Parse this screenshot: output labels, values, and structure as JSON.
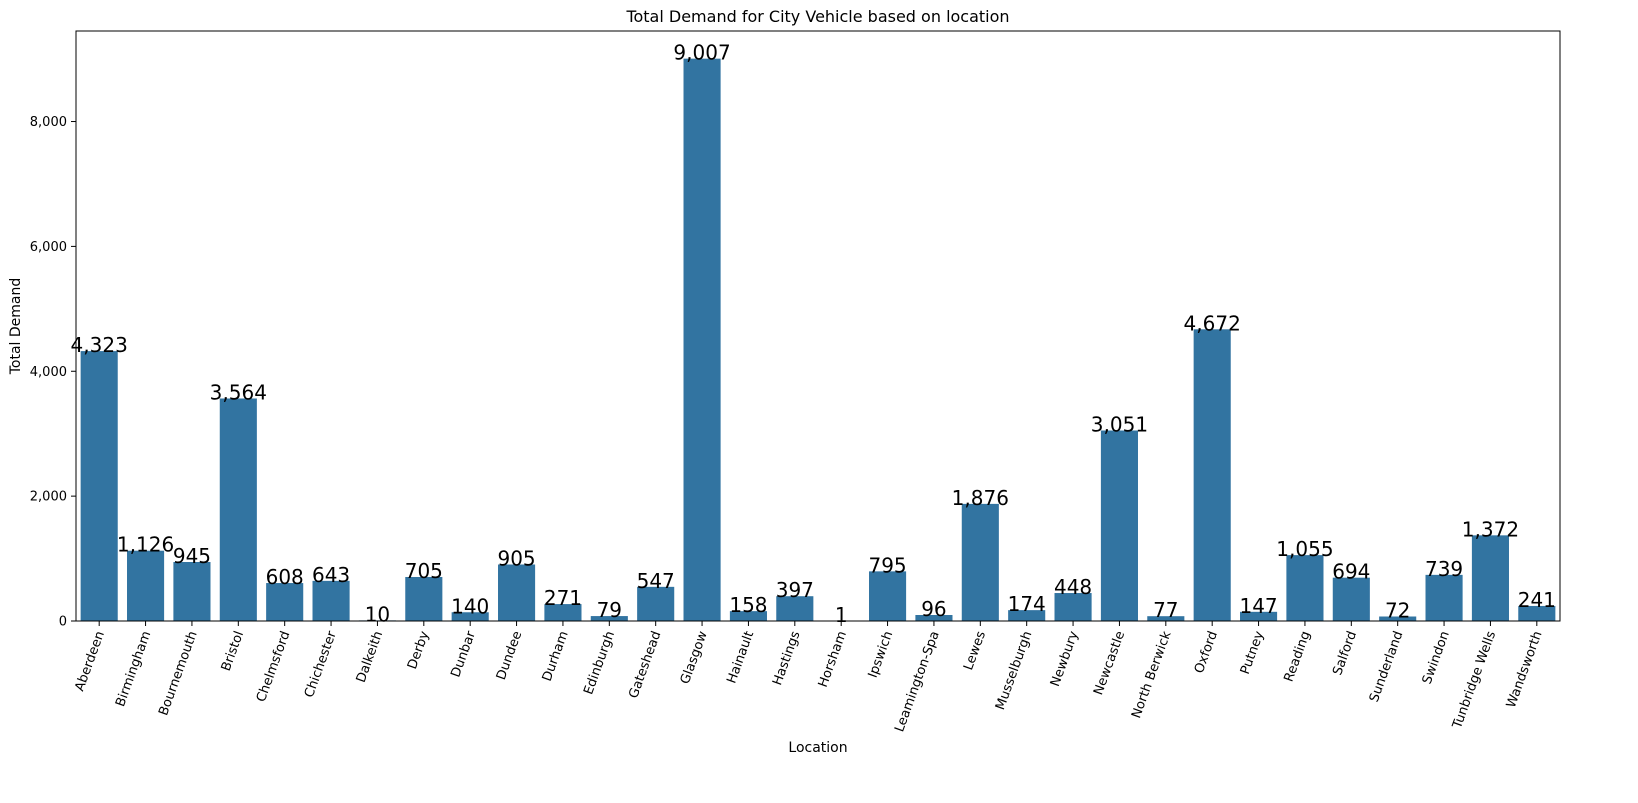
{
  "chart_data": {
    "type": "bar",
    "title": "Total Demand for City Vehicle based on location",
    "xlabel": "Location",
    "ylabel": "Total Demand",
    "ylim": [
      0,
      9450
    ],
    "yticks": [
      0,
      2000,
      4000,
      6000,
      8000
    ],
    "ytick_labels": [
      "0",
      "2,000",
      "4,000",
      "6,000",
      "8,000"
    ],
    "bar_color": "#3274a1",
    "grid": false,
    "categories": [
      "Aberdeen",
      "Birmingham",
      "Bournemouth",
      "Bristol",
      "Chelmsford",
      "Chichester",
      "Dalkeith",
      "Derby",
      "Dunbar",
      "Dundee",
      "Durham",
      "Edinburgh",
      "Gateshead",
      "Glasgow",
      "Hainault",
      "Hastings",
      "Horsham",
      "Ipswich",
      "Leamington-Spa",
      "Lewes",
      "Musselburgh",
      "Newbury",
      "Newcastle",
      "North Berwick",
      "Oxford",
      "Putney",
      "Reading",
      "Salford",
      "Sunderland",
      "Swindon",
      "Tunbridge Wells",
      "Wandsworth"
    ],
    "values": [
      4323,
      1126,
      945,
      3564,
      608,
      643,
      10,
      705,
      140,
      905,
      271,
      79,
      547,
      9007,
      158,
      397,
      1,
      795,
      96,
      1876,
      174,
      448,
      3051,
      77,
      4672,
      147,
      1055,
      694,
      72,
      739,
      1372,
      241
    ],
    "value_labels": [
      "4,323",
      "1,126",
      "945",
      "3,564",
      "608",
      "643",
      "10",
      "705",
      "140",
      "905",
      "271",
      "79",
      "547",
      "9,007",
      "158",
      "397",
      "1",
      "795",
      "96",
      "1,876",
      "174",
      "448",
      "3,051",
      "77",
      "4,672",
      "147",
      "1,055",
      "694",
      "72",
      "739",
      "1,372",
      "241"
    ]
  }
}
